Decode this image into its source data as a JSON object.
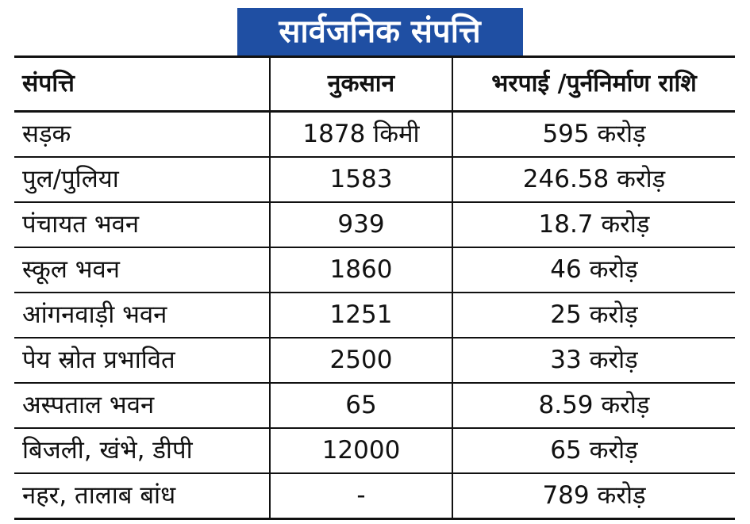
{
  "title": "सार्वजनिक संपत्ति",
  "table": {
    "headers": [
      "संपत्ति",
      "नुकसान",
      "भरपाई /पुर्ननिर्माण राशि"
    ],
    "rows": [
      [
        "सड़क",
        "1878 किमी",
        "595 करोड़"
      ],
      [
        "पुल/पुलिया",
        "1583",
        "246.58 करोड़"
      ],
      [
        "पंचायत भवन",
        "939",
        "18.7 करोड़"
      ],
      [
        "स्कूल भवन",
        "1860",
        "46 करोड़"
      ],
      [
        "आंगनवाड़ी भवन",
        "1251",
        "25 करोड़"
      ],
      [
        "पेय स्रोत प्रभावित",
        "2500",
        "33 करोड़"
      ],
      [
        "अस्पताल भवन",
        "65",
        "8.59 करोड़"
      ],
      [
        "बिजली, खंभे, डीपी",
        "12000",
        "65 करोड़"
      ],
      [
        "नहर, तालाब बांध",
        "-",
        "789 करोड़"
      ]
    ]
  },
  "colors": {
    "title_background": "#1f4fa3",
    "title_text": "#ffffff",
    "text": "#111111",
    "rules": "#111111",
    "background": "#ffffff"
  }
}
